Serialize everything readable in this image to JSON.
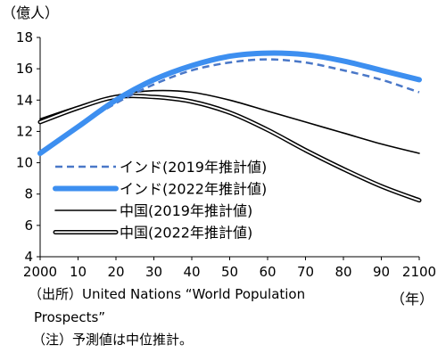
{
  "chart_data": {
    "type": "line",
    "ylabel": "（億人）",
    "xlabel": "（年）",
    "xlim": [
      2000,
      2100
    ],
    "ylim": [
      4,
      18
    ],
    "x_ticks": [
      2000,
      2010,
      2020,
      2030,
      2040,
      2050,
      2060,
      2070,
      2080,
      2090,
      2100
    ],
    "x_tick_labels": [
      "2000",
      "10",
      "20",
      "30",
      "40",
      "50",
      "60",
      "70",
      "80",
      "90",
      "2100"
    ],
    "y_ticks": [
      4,
      6,
      8,
      10,
      12,
      14,
      16,
      18
    ],
    "grid": false,
    "legend_position": "bottom-right",
    "x": [
      2000,
      2010,
      2020,
      2030,
      2040,
      2050,
      2060,
      2070,
      2080,
      2090,
      2100
    ],
    "series": [
      {
        "name": "インド(2019年推計値)",
        "style": "dashed",
        "color": "#4a78c8",
        "values": [
          10.5,
          12.3,
          13.8,
          15.0,
          15.9,
          16.4,
          16.6,
          16.4,
          15.9,
          15.3,
          14.5
        ]
      },
      {
        "name": "インド(2022年推計値)",
        "style": "thick",
        "color": "#3d8ff0",
        "values": [
          10.6,
          12.3,
          14.0,
          15.3,
          16.2,
          16.8,
          17.0,
          16.9,
          16.5,
          15.9,
          15.3
        ]
      },
      {
        "name": "中国(2019年推計値)",
        "style": "solid",
        "color": "#000000",
        "values": [
          12.8,
          13.6,
          14.3,
          14.6,
          14.5,
          14.0,
          13.3,
          12.6,
          11.9,
          11.2,
          10.6
        ]
      },
      {
        "name": "中国(2022年推計値)",
        "style": "double",
        "color": "#000000",
        "values": [
          12.6,
          13.5,
          14.2,
          14.2,
          13.9,
          13.2,
          12.1,
          10.8,
          9.6,
          8.5,
          7.6
        ]
      }
    ]
  },
  "notes": {
    "source_line1": "（出所）United Nations “World Population",
    "source_line2": "Prospects”",
    "note": "（注）予測値は中位推計。"
  }
}
